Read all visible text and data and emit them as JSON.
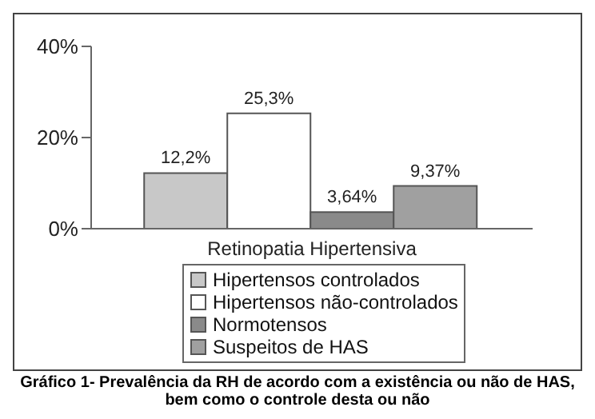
{
  "chart_data": {
    "type": "bar",
    "categories": [
      "Retinopatia Hipertensiva"
    ],
    "series": [
      {
        "name": "Hipertensos controlados",
        "color": "#c8c8c8",
        "values": [
          12.2
        ],
        "value_labels": [
          "12,2%"
        ]
      },
      {
        "name": "Hipertensos não-controlados",
        "color": "#ffffff",
        "values": [
          25.3
        ],
        "value_labels": [
          "25,3%"
        ]
      },
      {
        "name": "Normotensos",
        "color": "#8a8a8a",
        "values": [
          3.64
        ],
        "value_labels": [
          "3,64%"
        ]
      },
      {
        "name": "Suspeitos de HAS",
        "color": "#a0a0a0",
        "values": [
          9.37
        ],
        "value_labels": [
          "9,37%"
        ]
      }
    ],
    "ylim": [
      0,
      40
    ],
    "yticks": [
      {
        "value": 0,
        "label": "0%"
      },
      {
        "value": 20,
        "label": "20%"
      },
      {
        "value": 40,
        "label": "40%"
      }
    ],
    "grid": false,
    "legend": "bottom",
    "annotations": [
      "Gráfico 1- Prevalência da RH de acordo com a existência ou não de HAS, bem como o controle desta ou não"
    ]
  }
}
